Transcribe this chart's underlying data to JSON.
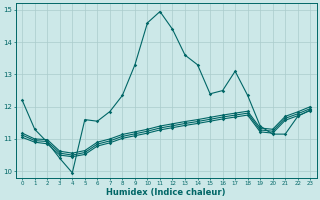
{
  "xlabel": "Humidex (Indice chaleur)",
  "xlim": [
    -0.5,
    23.5
  ],
  "ylim": [
    9.8,
    15.2
  ],
  "yticks": [
    10,
    11,
    12,
    13,
    14,
    15
  ],
  "xticks": [
    0,
    1,
    2,
    3,
    4,
    5,
    6,
    7,
    8,
    9,
    10,
    11,
    12,
    13,
    14,
    15,
    16,
    17,
    18,
    19,
    20,
    21,
    22,
    23
  ],
  "bg_color": "#cce8e8",
  "grid_color": "#aacccc",
  "line_color": "#006666",
  "series1_y": [
    12.2,
    11.3,
    10.9,
    10.4,
    9.95,
    11.6,
    11.55,
    11.85,
    12.35,
    13.3,
    14.6,
    14.95,
    14.4,
    13.6,
    13.3,
    12.4,
    12.5,
    13.1,
    12.35,
    11.4,
    11.15,
    11.15,
    11.7,
    11.9
  ],
  "series2_y": [
    11.05,
    10.9,
    10.85,
    10.5,
    10.45,
    10.52,
    10.78,
    10.88,
    11.02,
    11.1,
    11.18,
    11.28,
    11.35,
    11.42,
    11.48,
    11.55,
    11.62,
    11.68,
    11.74,
    11.22,
    11.18,
    11.58,
    11.72,
    11.88
  ],
  "series3_y": [
    11.12,
    10.95,
    10.92,
    10.56,
    10.5,
    10.58,
    10.84,
    10.94,
    11.08,
    11.16,
    11.24,
    11.34,
    11.41,
    11.48,
    11.54,
    11.61,
    11.68,
    11.74,
    11.8,
    11.28,
    11.24,
    11.64,
    11.78,
    11.94
  ],
  "series4_y": [
    11.18,
    11.0,
    10.98,
    10.62,
    10.56,
    10.64,
    10.9,
    11.0,
    11.14,
    11.22,
    11.3,
    11.4,
    11.47,
    11.54,
    11.6,
    11.67,
    11.74,
    11.8,
    11.86,
    11.34,
    11.3,
    11.7,
    11.84,
    12.0
  ]
}
